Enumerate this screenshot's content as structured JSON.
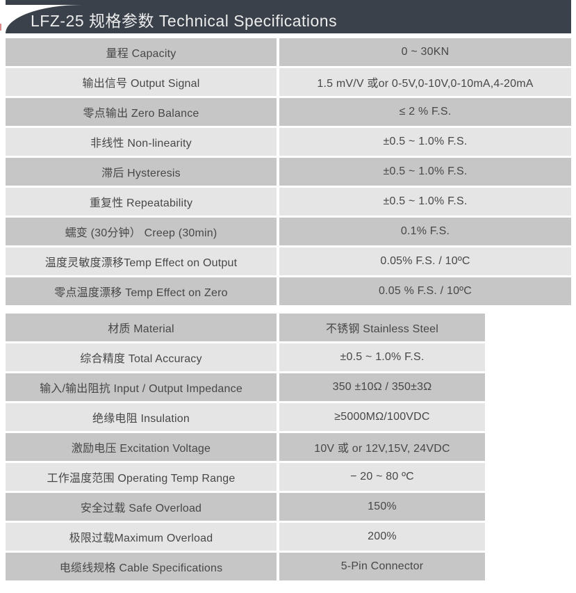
{
  "header": {
    "title": "LFZ-25 规格参数 Technical Specifications"
  },
  "colors": {
    "page_bg": "#ffffff",
    "header_bg": "#3a414b",
    "title_text": "#ececec",
    "row_dark": "#c6c6c6",
    "row_light": "#e5e5e5",
    "cell_text": "#474747",
    "edge_mark": "#da8a8a"
  },
  "tables": [
    {
      "name": "primary-specs",
      "rows": [
        {
          "label": "量程 Capacity",
          "value": "0 ~ 30KN"
        },
        {
          "label": "输出信号 Output Signal",
          "value": "1.5 mV/V 或or 0-5V,0-10V,0-10mA,4-20mA"
        },
        {
          "label": "零点输出  Zero Balance",
          "value": "≤ 2 % F.S."
        },
        {
          "label": "非线性 Non-linearity",
          "value": "±0.5 ~ 1.0% F.S."
        },
        {
          "label": "滞后 Hysteresis",
          "value": "±0.5 ~ 1.0% F.S."
        },
        {
          "label": "重复性 Repeatability",
          "value": "±0.5 ~ 1.0% F.S."
        },
        {
          "label": "蠕变 (30分钟） Creep (30min)",
          "value": "0.1% F.S."
        },
        {
          "label": "温度灵敏度漂移Temp Effect on Output",
          "value": "0.05% F.S. / 10ºC"
        },
        {
          "label": "零点温度漂移 Temp Effect on Zero",
          "value": "0.05 % F.S. / 10ºC"
        }
      ]
    },
    {
      "name": "secondary-specs",
      "rows": [
        {
          "label": "材质 Material",
          "value": "不锈钢 Stainless Steel"
        },
        {
          "label": "综合精度 Total Accuracy",
          "value": "±0.5 ~ 1.0% F.S."
        },
        {
          "label": "输入/输出阻抗 Input / Output Impedance",
          "value": "350 ±10Ω / 350±3Ω"
        },
        {
          "label": "绝缘电阻  Insulation",
          "value": "≥5000MΩ/100VDC"
        },
        {
          "label": "激励电压  Excitation Voltage",
          "value": "10V 或 or 12V,15V, 24VDC"
        },
        {
          "label": "工作温度范围 Operating Temp  Range",
          "value": "− 20 ~ 80 ºC"
        },
        {
          "label": "安全过载 Safe Overload",
          "value": "150%"
        },
        {
          "label": "极限过载Maximum Overload",
          "value": "200%"
        },
        {
          "label": "电缆线规格 Cable Specifications",
          "value": "5-Pin Connector"
        }
      ]
    }
  ]
}
